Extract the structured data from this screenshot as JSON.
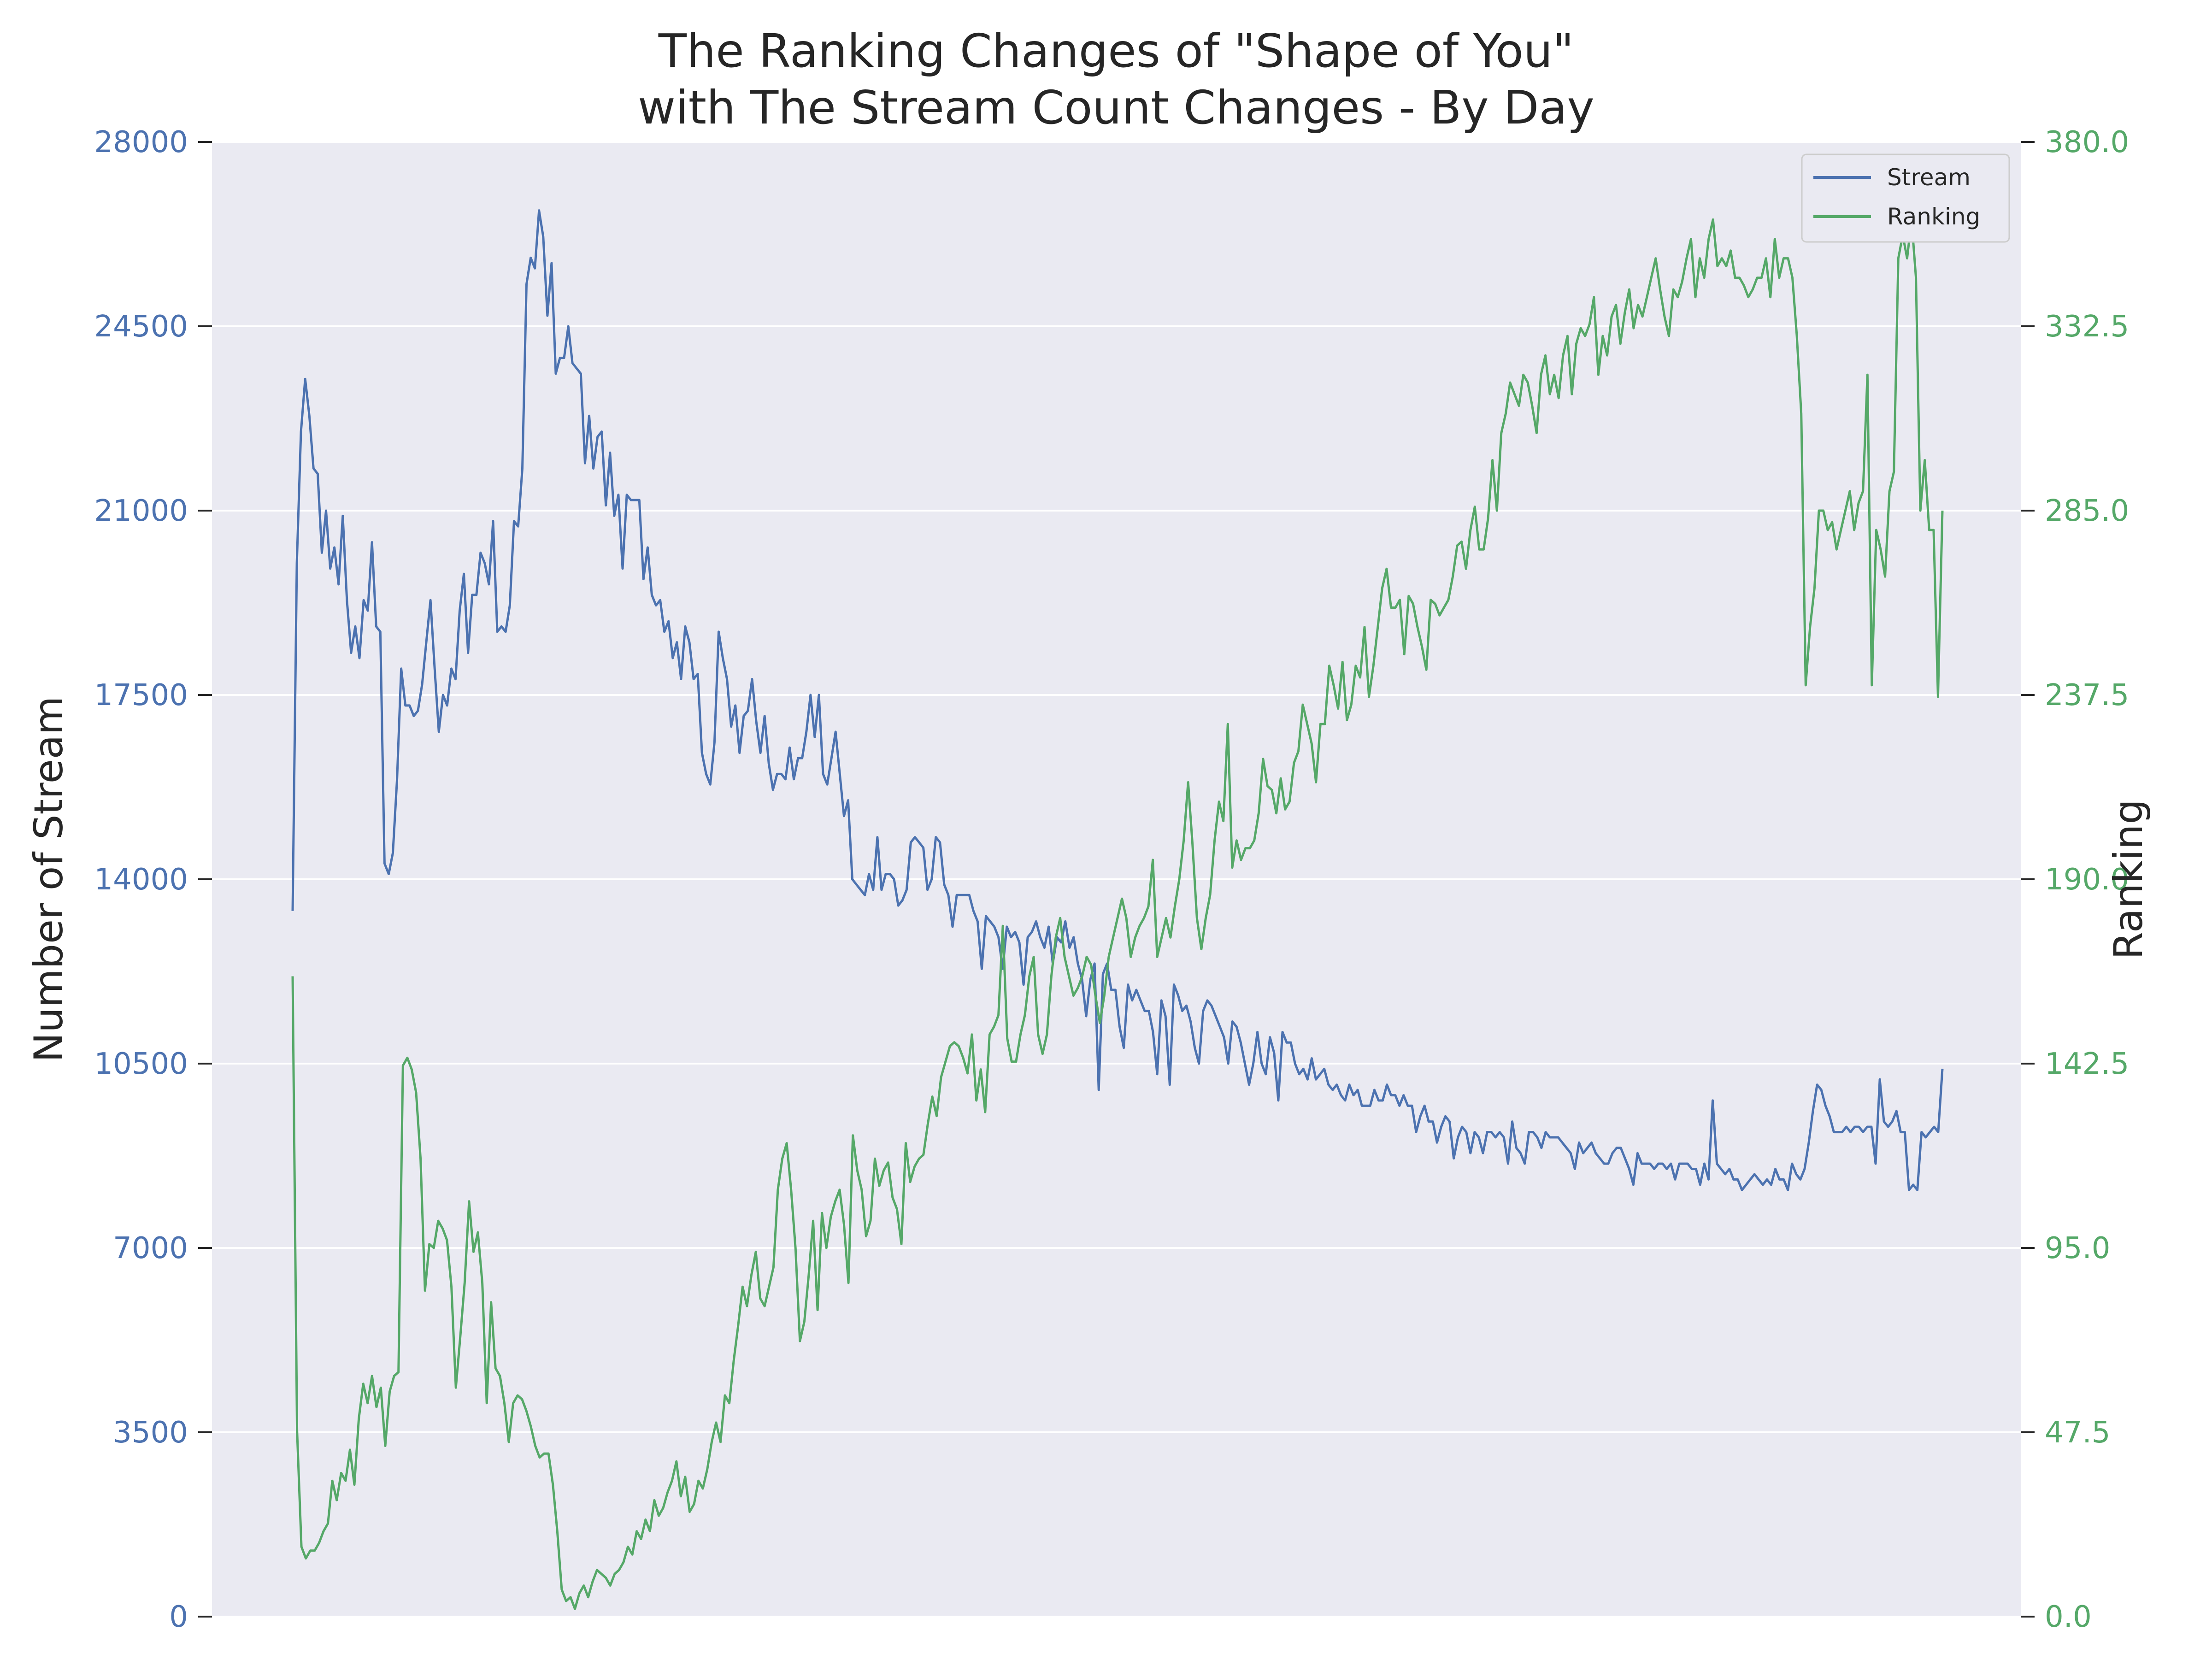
{
  "chart_data": {
    "type": "line",
    "title_line1": "The Ranking Changes of \"Shape of You\"",
    "title_line2": "with The Stream Count Changes - By Day",
    "ylabel_left": "Number of Stream",
    "ylabel_right": "Ranking",
    "ylim_left": [
      0,
      28000
    ],
    "ylim_right": [
      0,
      380
    ],
    "yticks_left": [
      "0",
      "3500",
      "7000",
      "10500",
      "14000",
      "17500",
      "21000",
      "24500",
      "28000"
    ],
    "yticks_right": [
      "0.0",
      "47.5",
      "95.0",
      "142.5",
      "190.0",
      "237.5",
      "285.0",
      "332.5",
      "380.0"
    ],
    "grid": true,
    "legend_position": "top-right",
    "colors": {
      "stream": "#4c72b0",
      "ranking": "#55a868",
      "background": "#eaeaf2"
    },
    "series": [
      {
        "name": "Stream",
        "axis": "left",
        "values": [
          13400,
          20000,
          22500,
          23500,
          22800,
          21800,
          21700,
          20200,
          21000,
          19900,
          20300,
          19600,
          20900,
          19300,
          18300,
          18800,
          18200,
          19300,
          19100,
          20400,
          18800,
          18700,
          14300,
          14100,
          14500,
          15900,
          18000,
          17300,
          17300,
          17100,
          17200,
          17700,
          18500,
          19300,
          18000,
          16800,
          17500,
          17300,
          18000,
          17800,
          19100,
          19800,
          18300,
          19400,
          19400,
          20200,
          20000,
          19600,
          20800,
          18700,
          18800,
          18700,
          19200,
          20800,
          20700,
          21800,
          25300,
          25800,
          25600,
          26700,
          26200,
          24700,
          25700,
          23600,
          23900,
          23900,
          24500,
          23800,
          23700,
          23600,
          21900,
          22800,
          21800,
          22400,
          22500,
          21100,
          22100,
          20900,
          21300,
          19900,
          21300,
          21200,
          21200,
          21200,
          19700,
          20300,
          19400,
          19200,
          19300,
          18700,
          18900,
          18200,
          18500,
          17800,
          18800,
          18500,
          17800,
          17900,
          16400,
          16000,
          15800,
          16600,
          18700,
          18200,
          17800,
          16900,
          17300,
          16400,
          17100,
          17200,
          17800,
          17000,
          16400,
          17100,
          16200,
          15700,
          16000,
          16000,
          15900,
          16500,
          15900,
          16300,
          16300,
          16800,
          17500,
          16700,
          17500,
          16000,
          15800,
          16300,
          16800,
          16000,
          15200,
          15500,
          14000,
          13900,
          13800,
          13700,
          14100,
          13800,
          14800,
          13800,
          14100,
          14100,
          14000,
          13500,
          13600,
          13800,
          14700,
          14800,
          14700,
          14600,
          13800,
          14000,
          14800,
          14700,
          13900,
          13700,
          13100,
          13700,
          13700,
          13700,
          13700,
          13400,
          13200,
          12300,
          13300,
          13200,
          13100,
          12900,
          12300,
          13100,
          12900,
          13000,
          12800,
          12000,
          12900,
          13000,
          13200,
          12900,
          12700,
          13100,
          12400,
          12900,
          12800,
          13200,
          12700,
          12900,
          12400,
          12100,
          11400,
          12100,
          12400,
          10000,
          12200,
          12400,
          11900,
          11900,
          11200,
          10800,
          12000,
          11700,
          11900,
          11700,
          11500,
          11500,
          11100,
          10300,
          11700,
          11400,
          10100,
          12000,
          11800,
          11500,
          11600,
          11300,
          10800,
          10500,
          11500,
          11700,
          11600,
          11400,
          11200,
          11000,
          10500,
          11300,
          11200,
          10900,
          10500,
          10100,
          10500,
          11100,
          10500,
          10300,
          11000,
          10700,
          9800,
          11100,
          10900,
          10900,
          10500,
          10300,
          10400,
          10200,
          10600,
          10200,
          10300,
          10400,
          10100,
          10000,
          10100,
          9900,
          9800,
          10100,
          9900,
          10000,
          9700,
          9700,
          9700,
          10000,
          9800,
          9800,
          10100,
          9900,
          9900,
          9700,
          9900,
          9700,
          9700,
          9200,
          9500,
          9700,
          9400,
          9400,
          9000,
          9300,
          9500,
          9400,
          8700,
          9100,
          9300,
          9200,
          8800,
          9200,
          9100,
          8800,
          9200,
          9200,
          9100,
          9200,
          9100,
          8600,
          9400,
          8900,
          8800,
          8600,
          9200,
          9200,
          9100,
          8900,
          9200,
          9100,
          9100,
          9100,
          9000,
          8900,
          8800,
          8500,
          9000,
          8800,
          8900,
          9000,
          8800,
          8700,
          8600,
          8600,
          8800,
          8900,
          8900,
          8700,
          8500,
          8200,
          8800,
          8600,
          8600,
          8600,
          8500,
          8600,
          8600,
          8500,
          8600,
          8300,
          8600,
          8600,
          8600,
          8500,
          8500,
          8200,
          8600,
          8300,
          9800,
          8600,
          8500,
          8400,
          8500,
          8300,
          8300,
          8100,
          8200,
          8300,
          8400,
          8300,
          8200,
          8300,
          8200,
          8500,
          8300,
          8300,
          8100,
          8600,
          8400,
          8300,
          8500,
          9000,
          9600,
          10100,
          10000,
          9700,
          9500,
          9200,
          9200,
          9200,
          9300,
          9200,
          9300,
          9300,
          9200,
          9300,
          9300,
          8600,
          10200,
          9400,
          9300,
          9400,
          9600,
          9200,
          9200,
          8100,
          8200,
          8100,
          9200,
          9100,
          9200,
          9300,
          9200,
          10400
        ],
        "values_count_note": ""
      },
      {
        "name": "Ranking",
        "axis": "right",
        "values": [
          165,
          48,
          18,
          15,
          17,
          17,
          19,
          22,
          24,
          35,
          30,
          37,
          35,
          43,
          34,
          51,
          60,
          55,
          62,
          54,
          59,
          44,
          58,
          62,
          63,
          142,
          144,
          141,
          135,
          118,
          84,
          96,
          95,
          102,
          100,
          97,
          85,
          59,
          72,
          86,
          107,
          94,
          99,
          86,
          55,
          81,
          64,
          62,
          55,
          45,
          55,
          57,
          56,
          53,
          49,
          44,
          41,
          42,
          42,
          34,
          22,
          7,
          4,
          5,
          2,
          6,
          8,
          5,
          9,
          12,
          11,
          10,
          8,
          11,
          12,
          14,
          18,
          16,
          22,
          20,
          25,
          22,
          30,
          26,
          28,
          32,
          35,
          40,
          31,
          36,
          27,
          29,
          35,
          33,
          38,
          45,
          50,
          45,
          57,
          55,
          66,
          75,
          85,
          80,
          88,
          94,
          82,
          80,
          85,
          90,
          110,
          118,
          122,
          110,
          95,
          71,
          76,
          88,
          102,
          79,
          104,
          95,
          103,
          107,
          110,
          101,
          86,
          124,
          115,
          110,
          98,
          102,
          118,
          111,
          115,
          117,
          108,
          105,
          96,
          122,
          112,
          116,
          118,
          119,
          127,
          134,
          129,
          139,
          143,
          147,
          148,
          147,
          144,
          140,
          150,
          133,
          141,
          130,
          150,
          152,
          155,
          178,
          149,
          143,
          143,
          150,
          155,
          165,
          170,
          150,
          145,
          150,
          165,
          175,
          180,
          170,
          165,
          160,
          162,
          165,
          170,
          168,
          160,
          153,
          160,
          170,
          175,
          180,
          185,
          180,
          170,
          175,
          178,
          180,
          183,
          195,
          170,
          175,
          180,
          175,
          183,
          190,
          200,
          215,
          199,
          180,
          172,
          180,
          186,
          200,
          210,
          205,
          230,
          193,
          200,
          195,
          198,
          198,
          200,
          207,
          221,
          214,
          213,
          207,
          216,
          208,
          210,
          220,
          223,
          235,
          230,
          225,
          215,
          230,
          230,
          245,
          240,
          234,
          246,
          231,
          235,
          245,
          242,
          255,
          237,
          245,
          255,
          265,
          270,
          260,
          260,
          262,
          248,
          263,
          261,
          255,
          250,
          244,
          262,
          261,
          258,
          260,
          262,
          268,
          276,
          277,
          270,
          280,
          286,
          275,
          275,
          283,
          298,
          285,
          305,
          310,
          318,
          315,
          312,
          320,
          318,
          312,
          305,
          320,
          325,
          315,
          320,
          314,
          325,
          330,
          315,
          328,
          332,
          330,
          333,
          340,
          320,
          330,
          325,
          335,
          338,
          328,
          336,
          342,
          332,
          338,
          335,
          340,
          345,
          350,
          342,
          335,
          330,
          342,
          340,
          344,
          350,
          355,
          340,
          350,
          345,
          355,
          360,
          348,
          350,
          348,
          352,
          345,
          345,
          343,
          340,
          342,
          345,
          345,
          350,
          340,
          355,
          345,
          350,
          350,
          345,
          330,
          310,
          240,
          255,
          265,
          285,
          285,
          280,
          282,
          275,
          280,
          285,
          290,
          280,
          287,
          290,
          320,
          240,
          280,
          275,
          268,
          290,
          295,
          350,
          356,
          350,
          360,
          345,
          285,
          298,
          280,
          280,
          237,
          285
        ],
        "values_count_note": ""
      }
    ]
  }
}
